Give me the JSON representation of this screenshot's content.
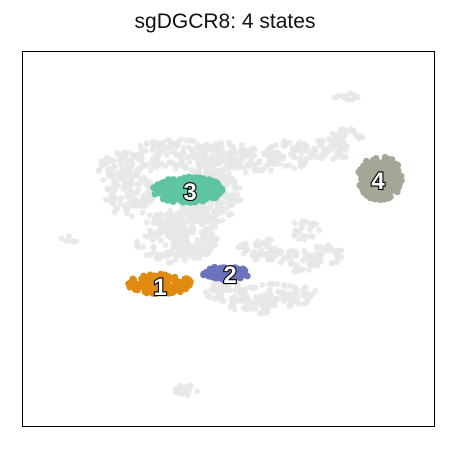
{
  "chart_data": {
    "type": "scatter",
    "title": "sgDGCR8: 4 states",
    "xlabel": "",
    "ylabel": "",
    "axes_visible": false,
    "grid": false,
    "background_color": "#e6e6e6",
    "states": [
      {
        "label": "1",
        "color": "#e08a12"
      },
      {
        "label": "2",
        "color": "#6b74bb"
      },
      {
        "label": "3",
        "color": "#5ec4a2"
      },
      {
        "label": "4",
        "color": "#a3a896"
      }
    ]
  }
}
